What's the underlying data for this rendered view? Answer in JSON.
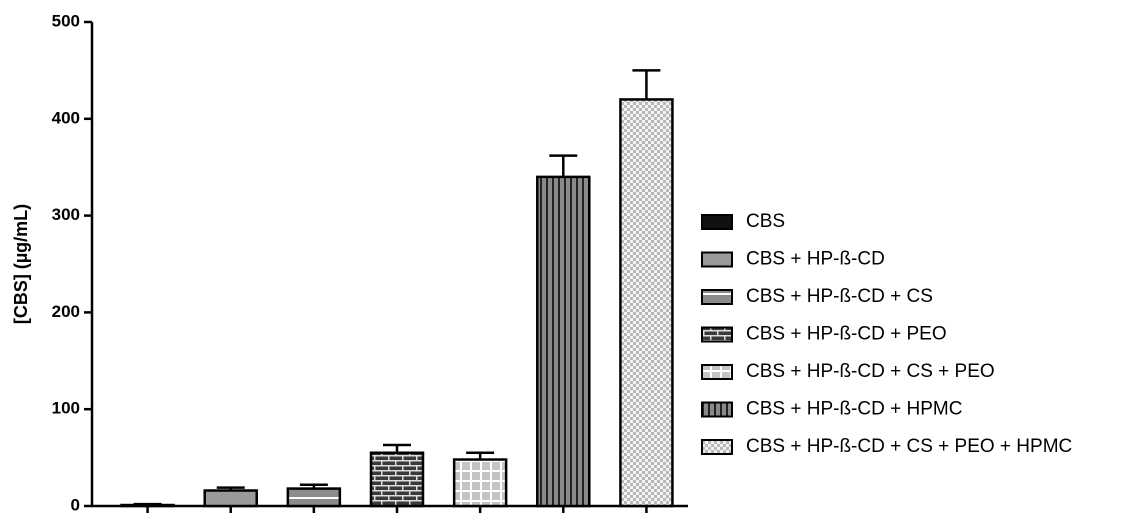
{
  "chart_data": {
    "type": "bar",
    "y_label": "[CBS] (µg/mL)",
    "categories": [
      null
    ],
    "ylim": [
      0,
      500
    ],
    "yticks": [
      0,
      100,
      200,
      300,
      400,
      500
    ],
    "grid": false,
    "series": [
      {
        "name": "CBS",
        "color": "#111111",
        "pattern": "solid",
        "values": [
          1
        ],
        "errors": [
          1
        ]
      },
      {
        "name": "CBS + HP-ß-CD",
        "color": "#9a9a9a",
        "pattern": "solid",
        "values": [
          16
        ],
        "errors": [
          3
        ]
      },
      {
        "name": "CBS + HP-ß-CD + CS",
        "color": "#8c8c8c",
        "pattern": "hline",
        "values": [
          18
        ],
        "errors": [
          4
        ]
      },
      {
        "name": "CBS + HP-ß-CD + PEO",
        "color": "#3a3a3a",
        "pattern": "brick",
        "values": [
          55
        ],
        "errors": [
          8
        ]
      },
      {
        "name": "CBS + HP-ß-CD + CS + PEO",
        "color": "#c4c4c4",
        "pattern": "grid",
        "values": [
          48
        ],
        "errors": [
          7
        ]
      },
      {
        "name": "CBS + HP-ß-CD + HPMC",
        "color": "#8a8a8a",
        "pattern": "vstripe",
        "values": [
          340
        ],
        "errors": [
          22
        ]
      },
      {
        "name": "CBS + HP-ß-CD + CS + PEO + HPMC",
        "color": "#b8b8b8",
        "pattern": "checker",
        "values": [
          420
        ],
        "errors": [
          30
        ]
      }
    ]
  }
}
